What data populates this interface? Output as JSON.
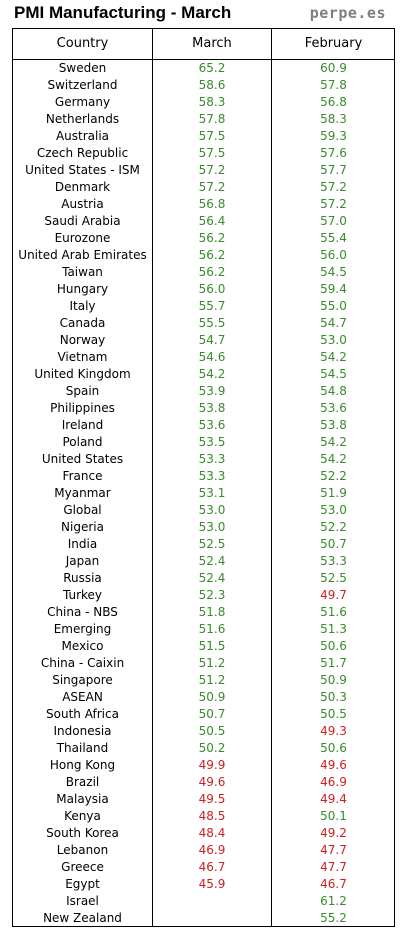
{
  "header": {
    "title": "PMI Manufacturing - March",
    "brand": "perpe.es"
  },
  "colors": {
    "above50": "#3a8a2e",
    "below50": "#d01f1f"
  },
  "chart_data": {
    "type": "table",
    "title": "PMI Manufacturing - March",
    "columns": [
      "Country",
      "March",
      "February"
    ],
    "threshold": 50,
    "rows": [
      {
        "country": "Sweden",
        "march": "65.2",
        "february": "60.9"
      },
      {
        "country": "Switzerland",
        "march": "58.6",
        "february": "57.8"
      },
      {
        "country": "Germany",
        "march": "58.3",
        "february": "56.8"
      },
      {
        "country": "Netherlands",
        "march": "57.8",
        "february": "58.3"
      },
      {
        "country": "Australia",
        "march": "57.5",
        "february": "59.3"
      },
      {
        "country": "Czech Republic",
        "march": "57.5",
        "february": "57.6"
      },
      {
        "country": "United States - ISM",
        "march": "57.2",
        "february": "57.7"
      },
      {
        "country": "Denmark",
        "march": "57.2",
        "february": "57.2"
      },
      {
        "country": "Austria",
        "march": "56.8",
        "february": "57.2"
      },
      {
        "country": "Saudi Arabia",
        "march": "56.4",
        "february": "57.0"
      },
      {
        "country": "Eurozone",
        "march": "56.2",
        "february": "55.4"
      },
      {
        "country": "United Arab Emirates",
        "march": "56.2",
        "february": "56.0"
      },
      {
        "country": "Taiwan",
        "march": "56.2",
        "february": "54.5"
      },
      {
        "country": "Hungary",
        "march": "56.0",
        "february": "59.4"
      },
      {
        "country": "Italy",
        "march": "55.7",
        "february": "55.0"
      },
      {
        "country": "Canada",
        "march": "55.5",
        "february": "54.7"
      },
      {
        "country": "Norway",
        "march": "54.7",
        "february": "53.0"
      },
      {
        "country": "Vietnam",
        "march": "54.6",
        "february": "54.2"
      },
      {
        "country": "United Kingdom",
        "march": "54.2",
        "february": "54.5"
      },
      {
        "country": "Spain",
        "march": "53.9",
        "february": "54.8"
      },
      {
        "country": "Philippines",
        "march": "53.8",
        "february": "53.6"
      },
      {
        "country": "Ireland",
        "march": "53.6",
        "february": "53.8"
      },
      {
        "country": "Poland",
        "march": "53.5",
        "february": "54.2"
      },
      {
        "country": "United States",
        "march": "53.3",
        "february": "54.2"
      },
      {
        "country": "France",
        "march": "53.3",
        "february": "52.2"
      },
      {
        "country": "Myanmar",
        "march": "53.1",
        "february": "51.9"
      },
      {
        "country": "Global",
        "march": "53.0",
        "february": "53.0"
      },
      {
        "country": "Nigeria",
        "march": "53.0",
        "february": "52.2"
      },
      {
        "country": "India",
        "march": "52.5",
        "february": "50.7"
      },
      {
        "country": "Japan",
        "march": "52.4",
        "february": "53.3"
      },
      {
        "country": "Russia",
        "march": "52.4",
        "february": "52.5"
      },
      {
        "country": "Turkey",
        "march": "52.3",
        "february": "49.7"
      },
      {
        "country": "China - NBS",
        "march": "51.8",
        "february": "51.6"
      },
      {
        "country": "Emerging",
        "march": "51.6",
        "february": "51.3"
      },
      {
        "country": "Mexico",
        "march": "51.5",
        "february": "50.6"
      },
      {
        "country": "China - Caixin",
        "march": "51.2",
        "february": "51.7"
      },
      {
        "country": "Singapore",
        "march": "51.2",
        "february": "50.9"
      },
      {
        "country": "ASEAN",
        "march": "50.9",
        "february": "50.3"
      },
      {
        "country": "South Africa",
        "march": "50.7",
        "february": "50.5"
      },
      {
        "country": "Indonesia",
        "march": "50.5",
        "february": "49.3"
      },
      {
        "country": "Thailand",
        "march": "50.2",
        "february": "50.6"
      },
      {
        "country": "Hong Kong",
        "march": "49.9",
        "february": "49.6"
      },
      {
        "country": "Brazil",
        "march": "49.6",
        "february": "46.9"
      },
      {
        "country": "Malaysia",
        "march": "49.5",
        "february": "49.4"
      },
      {
        "country": "Kenya",
        "march": "48.5",
        "february": "50.1"
      },
      {
        "country": "South Korea",
        "march": "48.4",
        "february": "49.2"
      },
      {
        "country": "Lebanon",
        "march": "46.9",
        "february": "47.7"
      },
      {
        "country": "Greece",
        "march": "46.7",
        "february": "47.7"
      },
      {
        "country": "Egypt",
        "march": "45.9",
        "february": "46.7"
      },
      {
        "country": "Israel",
        "march": "",
        "february": "61.2"
      },
      {
        "country": "New Zealand",
        "march": "",
        "february": "55.2"
      }
    ]
  }
}
